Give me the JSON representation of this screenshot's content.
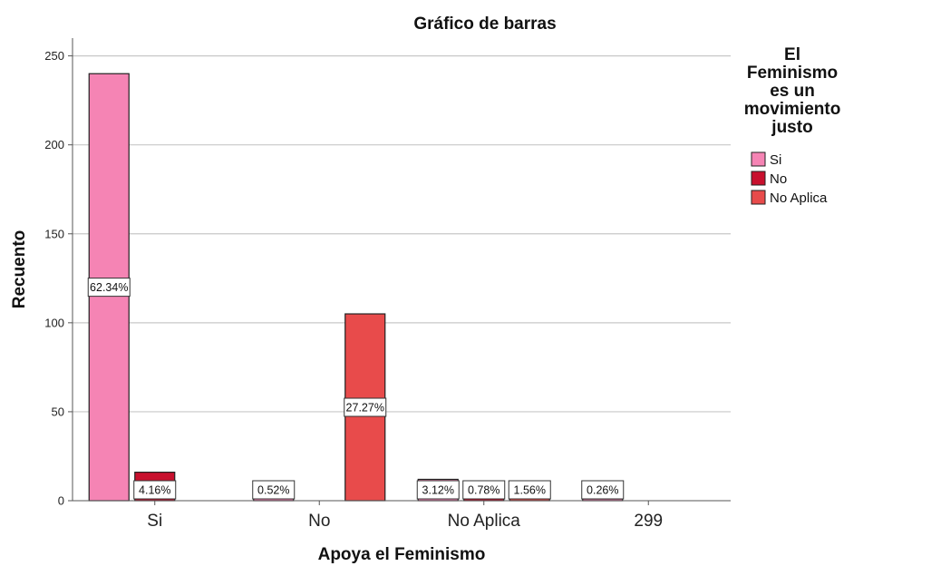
{
  "chart_data": {
    "type": "bar",
    "title": "Gráfico de barras",
    "xlabel": "Apoya el Feminismo",
    "ylabel": "Recuento",
    "categories": [
      "Si",
      "No",
      "No Aplica",
      "299"
    ],
    "ylim": [
      0,
      260
    ],
    "yticks": [
      0,
      50,
      100,
      150,
      200,
      250
    ],
    "grid": true,
    "legend": {
      "title_lines": [
        "El",
        "Feminismo",
        "es un",
        "movimiento",
        "justo"
      ],
      "placement": "right"
    },
    "series": [
      {
        "name": "Si",
        "color": "#f584b4",
        "values": [
          240,
          2,
          12,
          1
        ],
        "labels": [
          "62.34%",
          "0.52%",
          "3.12%",
          "0.26%"
        ]
      },
      {
        "name": "No",
        "color": "#c8102e",
        "values": [
          16,
          0,
          3,
          0
        ],
        "labels": [
          "4.16%",
          "",
          "0.78%",
          ""
        ]
      },
      {
        "name": "No Aplica",
        "color": "#e84b4b",
        "values": [
          0,
          105,
          6,
          0
        ],
        "labels": [
          "",
          "27.27%",
          "1.56%",
          ""
        ]
      }
    ]
  }
}
